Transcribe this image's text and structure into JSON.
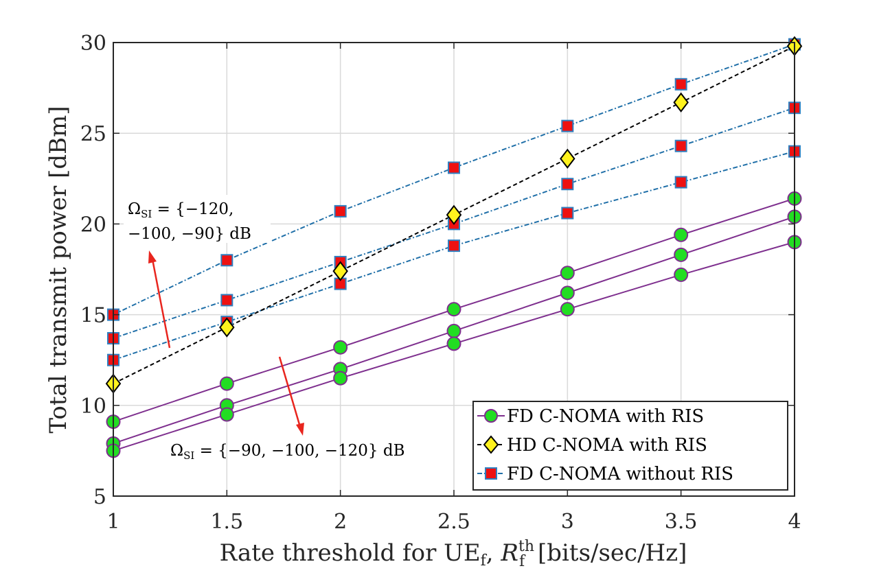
{
  "chart_data": {
    "type": "line",
    "xlabel": "Rate threshold for UE",
    "xlabel_sub": "f",
    "xlabel_mid": ", ",
    "xlabel_var": "R",
    "xlabel_var_sub": "f",
    "xlabel_var_sup": "th",
    "xlabel_unit": " [bits/sec/Hz]",
    "ylabel": "Total transmit power [dBm]",
    "xlim": [
      1,
      4
    ],
    "ylim": [
      5,
      30
    ],
    "xticks": [
      1,
      1.5,
      2,
      2.5,
      3,
      3.5,
      4
    ],
    "xtick_labels": [
      "1",
      "1.5",
      "2",
      "2.5",
      "3",
      "3.5",
      "4"
    ],
    "yticks": [
      5,
      10,
      15,
      20,
      25,
      30
    ],
    "ytick_labels": [
      "5",
      "10",
      "15",
      "20",
      "25",
      "30"
    ],
    "grid": true,
    "legend_position": "bottom-right",
    "x": [
      1,
      1.5,
      2,
      2.5,
      3,
      3.5,
      4
    ],
    "legend": [
      {
        "label": "FD C-NOMA with RIS",
        "marker": "circle",
        "line_color": "#7E2F8E",
        "face": "#22DD22",
        "edge": "#7E2F8E",
        "dash": "solid"
      },
      {
        "label": "HD C-NOMA with RIS",
        "marker": "diamond",
        "line_color": "#000000",
        "face": "#FFF21E",
        "edge": "#000000",
        "dash": "dashed"
      },
      {
        "label": "FD C-NOMA without RIS",
        "marker": "square",
        "line_color": "#1F6FA8",
        "face": "#EE1111",
        "edge": "#2F7FC0",
        "dash": "dashdot"
      }
    ],
    "series": [
      {
        "group": 0,
        "values": [
          9.1,
          11.2,
          13.2,
          15.3,
          17.3,
          19.4,
          21.4
        ]
      },
      {
        "group": 0,
        "values": [
          7.9,
          10.0,
          12.0,
          14.1,
          16.2,
          18.3,
          20.4
        ]
      },
      {
        "group": 0,
        "values": [
          7.5,
          9.5,
          11.5,
          13.4,
          15.3,
          17.2,
          19.0
        ]
      },
      {
        "group": 1,
        "values": [
          11.2,
          14.3,
          17.4,
          20.5,
          23.6,
          26.7,
          29.8
        ]
      },
      {
        "group": 2,
        "values": [
          15.0,
          18.0,
          20.7,
          23.1,
          25.4,
          27.7,
          29.9
        ]
      },
      {
        "group": 2,
        "values": [
          13.7,
          15.8,
          17.9,
          20.0,
          22.2,
          24.3,
          26.4
        ]
      },
      {
        "group": 2,
        "values": [
          12.5,
          14.6,
          16.7,
          18.8,
          20.6,
          22.3,
          24.0
        ]
      }
    ],
    "annotations": [
      {
        "id": "annot-upper",
        "line1_main": "Ω",
        "line1_sub": "SI",
        "line1_rest": " = {−120,",
        "line2": "−100, −90} dB"
      },
      {
        "id": "annot-lower",
        "line1_main": "Ω",
        "line1_sub": "SI",
        "line1_rest": " = {−90, −100, −120} dB"
      }
    ],
    "arrow_color": "#E8251E"
  }
}
